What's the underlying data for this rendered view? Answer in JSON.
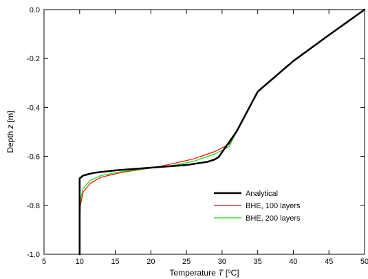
{
  "chart_data": {
    "type": "line",
    "xlabel_prefix": "Temperature ",
    "xlabel_var": "T",
    "xlabel_unit_open": " [",
    "xlabel_unit_sup": "o",
    "xlabel_unit_tail": "C]",
    "ylabel_prefix": "Depth ",
    "ylabel_var": "z",
    "ylabel_unit": " [m]",
    "xlim": [
      5,
      50
    ],
    "ylim": [
      -1.0,
      0.0
    ],
    "xticks": [
      5,
      10,
      15,
      20,
      25,
      30,
      35,
      40,
      45,
      50
    ],
    "xtick_labels": [
      "5",
      "10",
      "15",
      "20",
      "25",
      "30",
      "35",
      "40",
      "45",
      "50"
    ],
    "yticks": [
      0.0,
      -0.2,
      -0.4,
      -0.6,
      -0.8,
      -1.0
    ],
    "ytick_labels": [
      "0.0",
      "-0.2",
      "-0.4",
      "-0.6",
      "-0.8",
      "-1.0"
    ],
    "grid": false,
    "legend_position": "bottom-right",
    "series": [
      {
        "name": "Analytical",
        "color": "#000000",
        "points": [
          [
            50,
            0.0
          ],
          [
            45,
            -0.104
          ],
          [
            40,
            -0.21
          ],
          [
            35,
            -0.335
          ],
          [
            32,
            -0.5
          ],
          [
            29.5,
            -0.603
          ],
          [
            29,
            -0.612
          ],
          [
            28,
            -0.622
          ],
          [
            25,
            -0.635
          ],
          [
            20,
            -0.646
          ],
          [
            15,
            -0.657
          ],
          [
            12,
            -0.667
          ],
          [
            10.5,
            -0.678
          ],
          [
            10,
            -0.69
          ],
          [
            10,
            -0.75
          ],
          [
            10,
            -1.0
          ]
        ]
      },
      {
        "name": "BHE, 100 layers",
        "color": "#ff0000",
        "points": [
          [
            50,
            0.0
          ],
          [
            45,
            -0.104
          ],
          [
            40,
            -0.21
          ],
          [
            35,
            -0.335
          ],
          [
            32,
            -0.5
          ],
          [
            31,
            -0.55
          ],
          [
            29,
            -0.58
          ],
          [
            26,
            -0.61
          ],
          [
            23,
            -0.63
          ],
          [
            20,
            -0.648
          ],
          [
            16,
            -0.665
          ],
          [
            13,
            -0.685
          ],
          [
            11.5,
            -0.71
          ],
          [
            10.5,
            -0.745
          ],
          [
            10.1,
            -0.8
          ],
          [
            10,
            -0.9
          ],
          [
            10,
            -1.0
          ]
        ]
      },
      {
        "name": "BHE, 200 layers",
        "color": "#00e000",
        "points": [
          [
            50,
            0.0
          ],
          [
            45,
            -0.104
          ],
          [
            40,
            -0.21
          ],
          [
            35,
            -0.335
          ],
          [
            32,
            -0.5
          ],
          [
            31,
            -0.56
          ],
          [
            29,
            -0.59
          ],
          [
            26,
            -0.62
          ],
          [
            23,
            -0.637
          ],
          [
            20,
            -0.648
          ],
          [
            16,
            -0.662
          ],
          [
            13,
            -0.678
          ],
          [
            11.5,
            -0.698
          ],
          [
            10.5,
            -0.73
          ],
          [
            10.1,
            -0.78
          ],
          [
            10,
            -0.88
          ],
          [
            10,
            -1.0
          ]
        ]
      }
    ]
  }
}
